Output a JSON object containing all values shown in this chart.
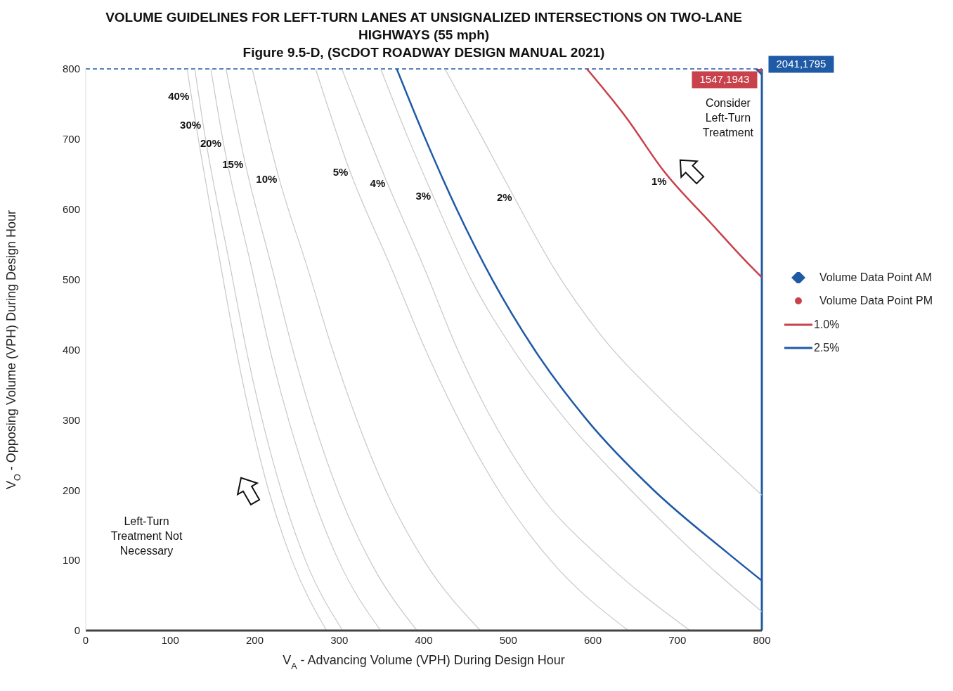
{
  "chart_data": {
    "type": "line",
    "title": "VOLUME GUIDELINES FOR LEFT-TURN LANES AT UNSIGNALIZED INTERSECTIONS ON TWO-LANE HIGHWAYS (55 mph)",
    "subtitle": "Figure 9.5-D, (SCDOT ROADWAY DESIGN MANUAL 2021)",
    "xlabel": "V$_{A}$ - Advancing Volume (VPH) During Design Hour",
    "ylabel": "V$_{O}$ - Opposing Volume (VPH) During Design Hour",
    "xlim": [
      0,
      800
    ],
    "ylim": [
      0,
      800
    ],
    "xticks": [
      0,
      100,
      200,
      300,
      400,
      500,
      600,
      700,
      800
    ],
    "yticks": [
      0,
      100,
      200,
      300,
      400,
      500,
      600,
      700,
      800
    ],
    "grid": false,
    "legend": "right",
    "series": [
      {
        "type": "scatter",
        "name": "Volume Data Point AM",
        "color": "#1f5aa6",
        "marker": "diamond",
        "x": [
          800
        ],
        "values": [
          800
        ],
        "value_labels": [
          "2041,1795"
        ]
      },
      {
        "type": "scatter",
        "name": "Volume Data Point PM",
        "color": "#c8414b",
        "marker": "circle",
        "x": [
          800
        ],
        "values": [
          800
        ],
        "value_labels": [
          "1547,1943"
        ]
      },
      {
        "name": "1.0%",
        "color": "#c8414b",
        "x": [
          593,
          640,
          683,
          740,
          786,
          800
        ],
        "values": [
          800,
          730,
          656,
          580,
          520,
          503
        ]
      },
      {
        "name": "2.5%",
        "color": "#1f5aa6",
        "x": [
          368,
          402,
          439,
          481,
          531,
          593,
          672,
          760,
          800
        ],
        "values": [
          800,
          700,
          600,
          500,
          400,
          300,
          200,
          110,
          71
        ]
      },
      {
        "color": "#c8c8c8",
        "x": [
          120,
          125,
          160,
          178,
          217,
          244,
          285
        ],
        "values": [
          800,
          761,
          518,
          400,
          197,
          100,
          0
        ]
      },
      {
        "color": "#c8c8c8",
        "x": [
          129,
          139,
          171,
          190,
          232,
          260,
          304
        ],
        "values": [
          800,
          720,
          518,
          400,
          197,
          100,
          0
        ]
      },
      {
        "color": "#c8c8c8",
        "x": [
          148,
          163,
          196,
          218,
          267,
          299,
          349
        ],
        "values": [
          800,
          694,
          518,
          400,
          197,
          100,
          0
        ]
      },
      {
        "color": "#c8c8c8",
        "x": [
          166,
          189,
          220,
          245,
          299,
          336,
          392
        ],
        "values": [
          800,
          664,
          518,
          400,
          197,
          100,
          0
        ]
      },
      {
        "color": "#c8c8c8",
        "x": [
          197,
          229,
          262,
          292,
          356,
          400,
          467
        ],
        "values": [
          800,
          643,
          518,
          400,
          197,
          100,
          0
        ]
      },
      {
        "color": "#c8c8c8",
        "x": [
          272,
          313,
          361,
          402,
          490,
          550,
          642
        ],
        "values": [
          800,
          653,
          518,
          400,
          197,
          100,
          0
        ]
      },
      {
        "color": "#c8c8c8",
        "x": [
          303,
          357,
          400,
          440,
          535,
          612,
          715
        ],
        "values": [
          800,
          637,
          518,
          400,
          197,
          100,
          0
        ]
      },
      {
        "color": "#c8c8c8",
        "x": [
          349,
          382,
          411,
          456,
          506,
          568,
          645,
          730,
          800
        ],
        "values": [
          800,
          700,
          619,
          500,
          400,
          300,
          200,
          100,
          27
        ]
      },
      {
        "color": "#c8c8c8",
        "x": [
          425,
          470,
          507,
          553,
          610,
          680,
          745,
          800
        ],
        "values": [
          800,
          700,
          617,
          518,
          420,
          330,
          255,
          193
        ]
      }
    ],
    "ref_lines": [
      {
        "axis": "y",
        "value": 800,
        "color": "#1f5aa6",
        "line_style": "dashed"
      },
      {
        "axis": "x",
        "value": 800,
        "color": "#1f5aa6",
        "line_style": "solid"
      }
    ],
    "annotations": [
      {
        "text": "40%",
        "x": 125,
        "y": 761
      },
      {
        "text": "30%",
        "x": 139,
        "y": 720
      },
      {
        "text": "20%",
        "x": 163,
        "y": 694
      },
      {
        "text": "15%",
        "x": 189,
        "y": 664
      },
      {
        "text": "10%",
        "x": 229,
        "y": 643
      },
      {
        "text": "5%",
        "x": 313,
        "y": 653
      },
      {
        "text": "4%",
        "x": 357,
        "y": 637
      },
      {
        "text": "3%",
        "x": 411,
        "y": 619
      },
      {
        "text": "2%",
        "x": 507,
        "y": 617
      },
      {
        "text": "1%",
        "x": 690,
        "y": 640
      },
      "Left-Turn Treatment Not Necessary",
      "Consider Left-Turn Treatment"
    ]
  }
}
